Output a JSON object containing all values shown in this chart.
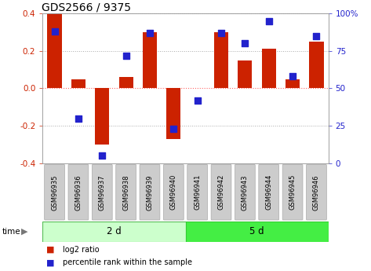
{
  "title": "GDS2566 / 9375",
  "samples": [
    "GSM96935",
    "GSM96936",
    "GSM96937",
    "GSM96938",
    "GSM96939",
    "GSM96940",
    "GSM96941",
    "GSM96942",
    "GSM96943",
    "GSM96944",
    "GSM96945",
    "GSM96946"
  ],
  "log2_ratio": [
    0.4,
    0.05,
    -0.3,
    0.06,
    0.3,
    -0.27,
    0.0,
    0.3,
    0.15,
    0.21,
    0.05,
    0.25
  ],
  "percentile": [
    88,
    30,
    5,
    72,
    87,
    23,
    42,
    87,
    80,
    95,
    58,
    85
  ],
  "group1_label": "2 d",
  "group2_label": "5 d",
  "group1_count": 6,
  "group2_count": 6,
  "ylim_left": [
    -0.4,
    0.4
  ],
  "ylim_right": [
    0,
    100
  ],
  "yticks_left": [
    -0.4,
    -0.2,
    0.0,
    0.2,
    0.4
  ],
  "yticks_right": [
    0,
    25,
    50,
    75,
    100
  ],
  "bar_color": "#cc2200",
  "dot_color": "#2222cc",
  "group1_bg": "#ccffcc",
  "group2_bg": "#44ee44",
  "sample_bg": "#cccccc",
  "time_label": "time",
  "legend_bar_label": "log2 ratio",
  "legend_dot_label": "percentile rank within the sample",
  "zero_line_color": "#ff6666",
  "grid_line_color": "#aaaaaa",
  "title_fontsize": 10,
  "tick_fontsize": 7.5,
  "bar_width": 0.6,
  "dot_size": 28
}
